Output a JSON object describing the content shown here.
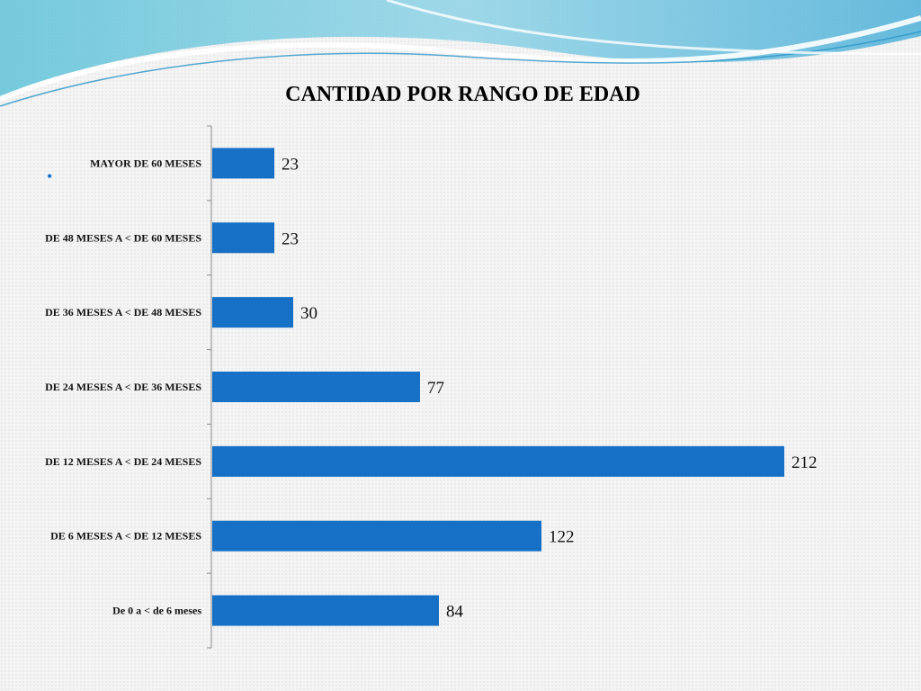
{
  "slide": {
    "bullet": "•"
  },
  "colors": {
    "bar": "#1570c6",
    "axis": "#8c8c8c"
  },
  "chart_data": {
    "type": "bar",
    "orientation": "horizontal",
    "title": "CANTIDAD POR RANGO DE EDAD",
    "categories": [
      "MAYOR DE 60 MESES",
      "DE 48 MESES A < DE 60 MESES",
      "DE 36 MESES A < DE 48 MESES",
      "DE 24 MESES A < DE 36 MESES",
      "DE 12 MESES A < DE 24 MESES",
      "DE 6 MESES A < DE 12 MESES",
      "De 0 a < de 6 meses"
    ],
    "values": [
      23,
      23,
      30,
      77,
      212,
      122,
      84
    ],
    "xlim": [
      0,
      212
    ],
    "grid": false,
    "legend": "none",
    "data_labels": true
  }
}
